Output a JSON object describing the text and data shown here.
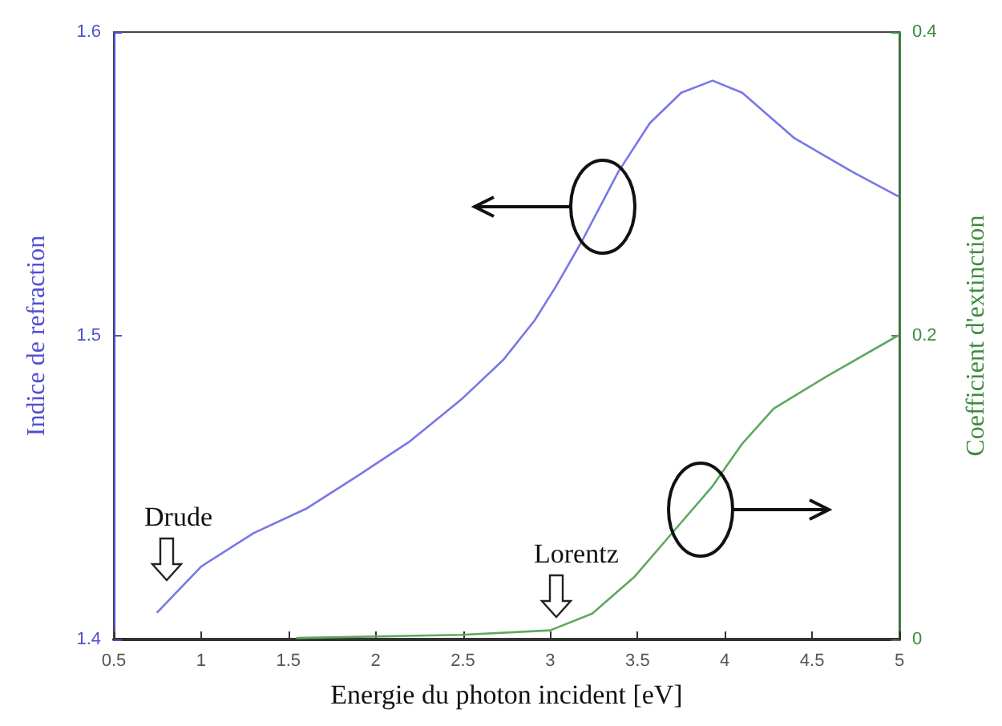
{
  "chart_data": {
    "type": "line",
    "xlabel": "Energie du photon incident [eV]",
    "ylabel": "Indice de refraction",
    "y2label": "Coefficient d'extinction",
    "xlim": [
      0.5,
      5
    ],
    "xticks": [
      0.5,
      1,
      1.5,
      2,
      2.5,
      3,
      3.5,
      4,
      4.5,
      5
    ],
    "ylim": [
      1.4,
      1.6
    ],
    "yticks": [
      1.4,
      1.5,
      1.6
    ],
    "y2lim": [
      0,
      0.4
    ],
    "y2ticks": [
      0,
      0.2,
      0.4
    ],
    "grid": false,
    "marker": "none",
    "line_style": "solid",
    "annotations": [
      "Drude",
      "Lorentz"
    ],
    "series": [
      {
        "color": "#7777e6",
        "x": [
          0.75,
          1.0,
          1.3,
          1.6,
          1.9,
          2.19,
          2.49,
          2.73,
          2.91,
          3.03,
          3.18,
          3.39,
          3.57,
          3.75,
          3.93,
          4.1,
          4.4,
          4.73,
          4.99
        ],
        "values": [
          1.409,
          1.424,
          1.435,
          1.443,
          1.454,
          1.465,
          1.479,
          1.492,
          1.505,
          1.516,
          1.531,
          1.554,
          1.57,
          1.58,
          1.584,
          1.58,
          1.565,
          1.554,
          1.546
        ]
      },
      {
        "color": "#5fa85f",
        "axis": "y2",
        "x": [
          1.55,
          2.49,
          3.0,
          3.24,
          3.48,
          3.69,
          3.93,
          4.1,
          4.28,
          4.58,
          4.99
        ],
        "values": [
          0.001,
          0.003,
          0.006,
          0.017,
          0.041,
          0.069,
          0.101,
          0.129,
          0.152,
          0.173,
          0.2
        ]
      }
    ]
  }
}
